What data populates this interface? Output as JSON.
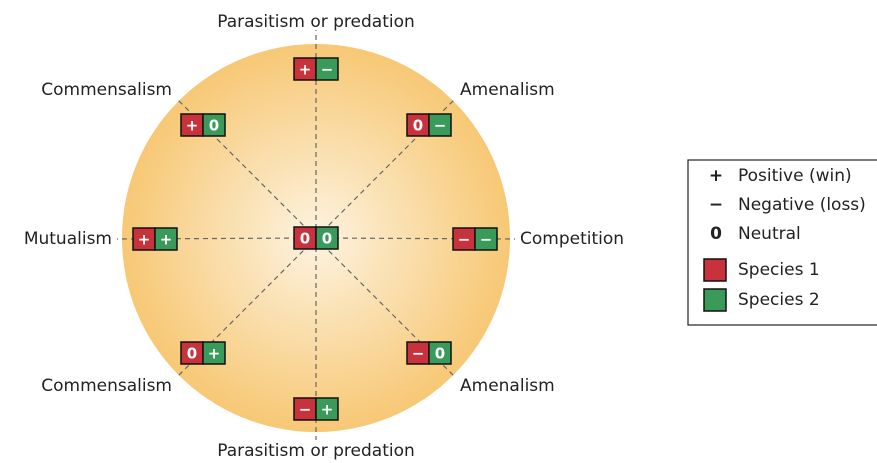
{
  "diagram": {
    "nodes": [
      {
        "label": "Parasitism or predation",
        "species1": "+",
        "species2": "−"
      },
      {
        "label": "Amenalism",
        "species1": "0",
        "species2": "−"
      },
      {
        "label": "Competition",
        "species1": "−",
        "species2": "−"
      },
      {
        "label": "Amenalism",
        "species1": "−",
        "species2": "0"
      },
      {
        "label": "Parasitism or predation",
        "species1": "−",
        "species2": "+"
      },
      {
        "label": "Commensalism",
        "species1": "0",
        "species2": "+"
      },
      {
        "label": "Mutualism",
        "species1": "+",
        "species2": "+"
      },
      {
        "label": "Commensalism",
        "species1": "+",
        "species2": "0"
      }
    ],
    "center": {
      "species1": "0",
      "species2": "0"
    },
    "legend": {
      "symbols": [
        {
          "symbol": "+",
          "label": "Positive (win)"
        },
        {
          "symbol": "−",
          "label": "Negative (loss)"
        },
        {
          "symbol": "0",
          "label": "Neutral"
        }
      ],
      "species": [
        {
          "label": "Species 1",
          "color": "#c8323c"
        },
        {
          "label": "Species 2",
          "color": "#3a9a5a"
        }
      ]
    }
  }
}
